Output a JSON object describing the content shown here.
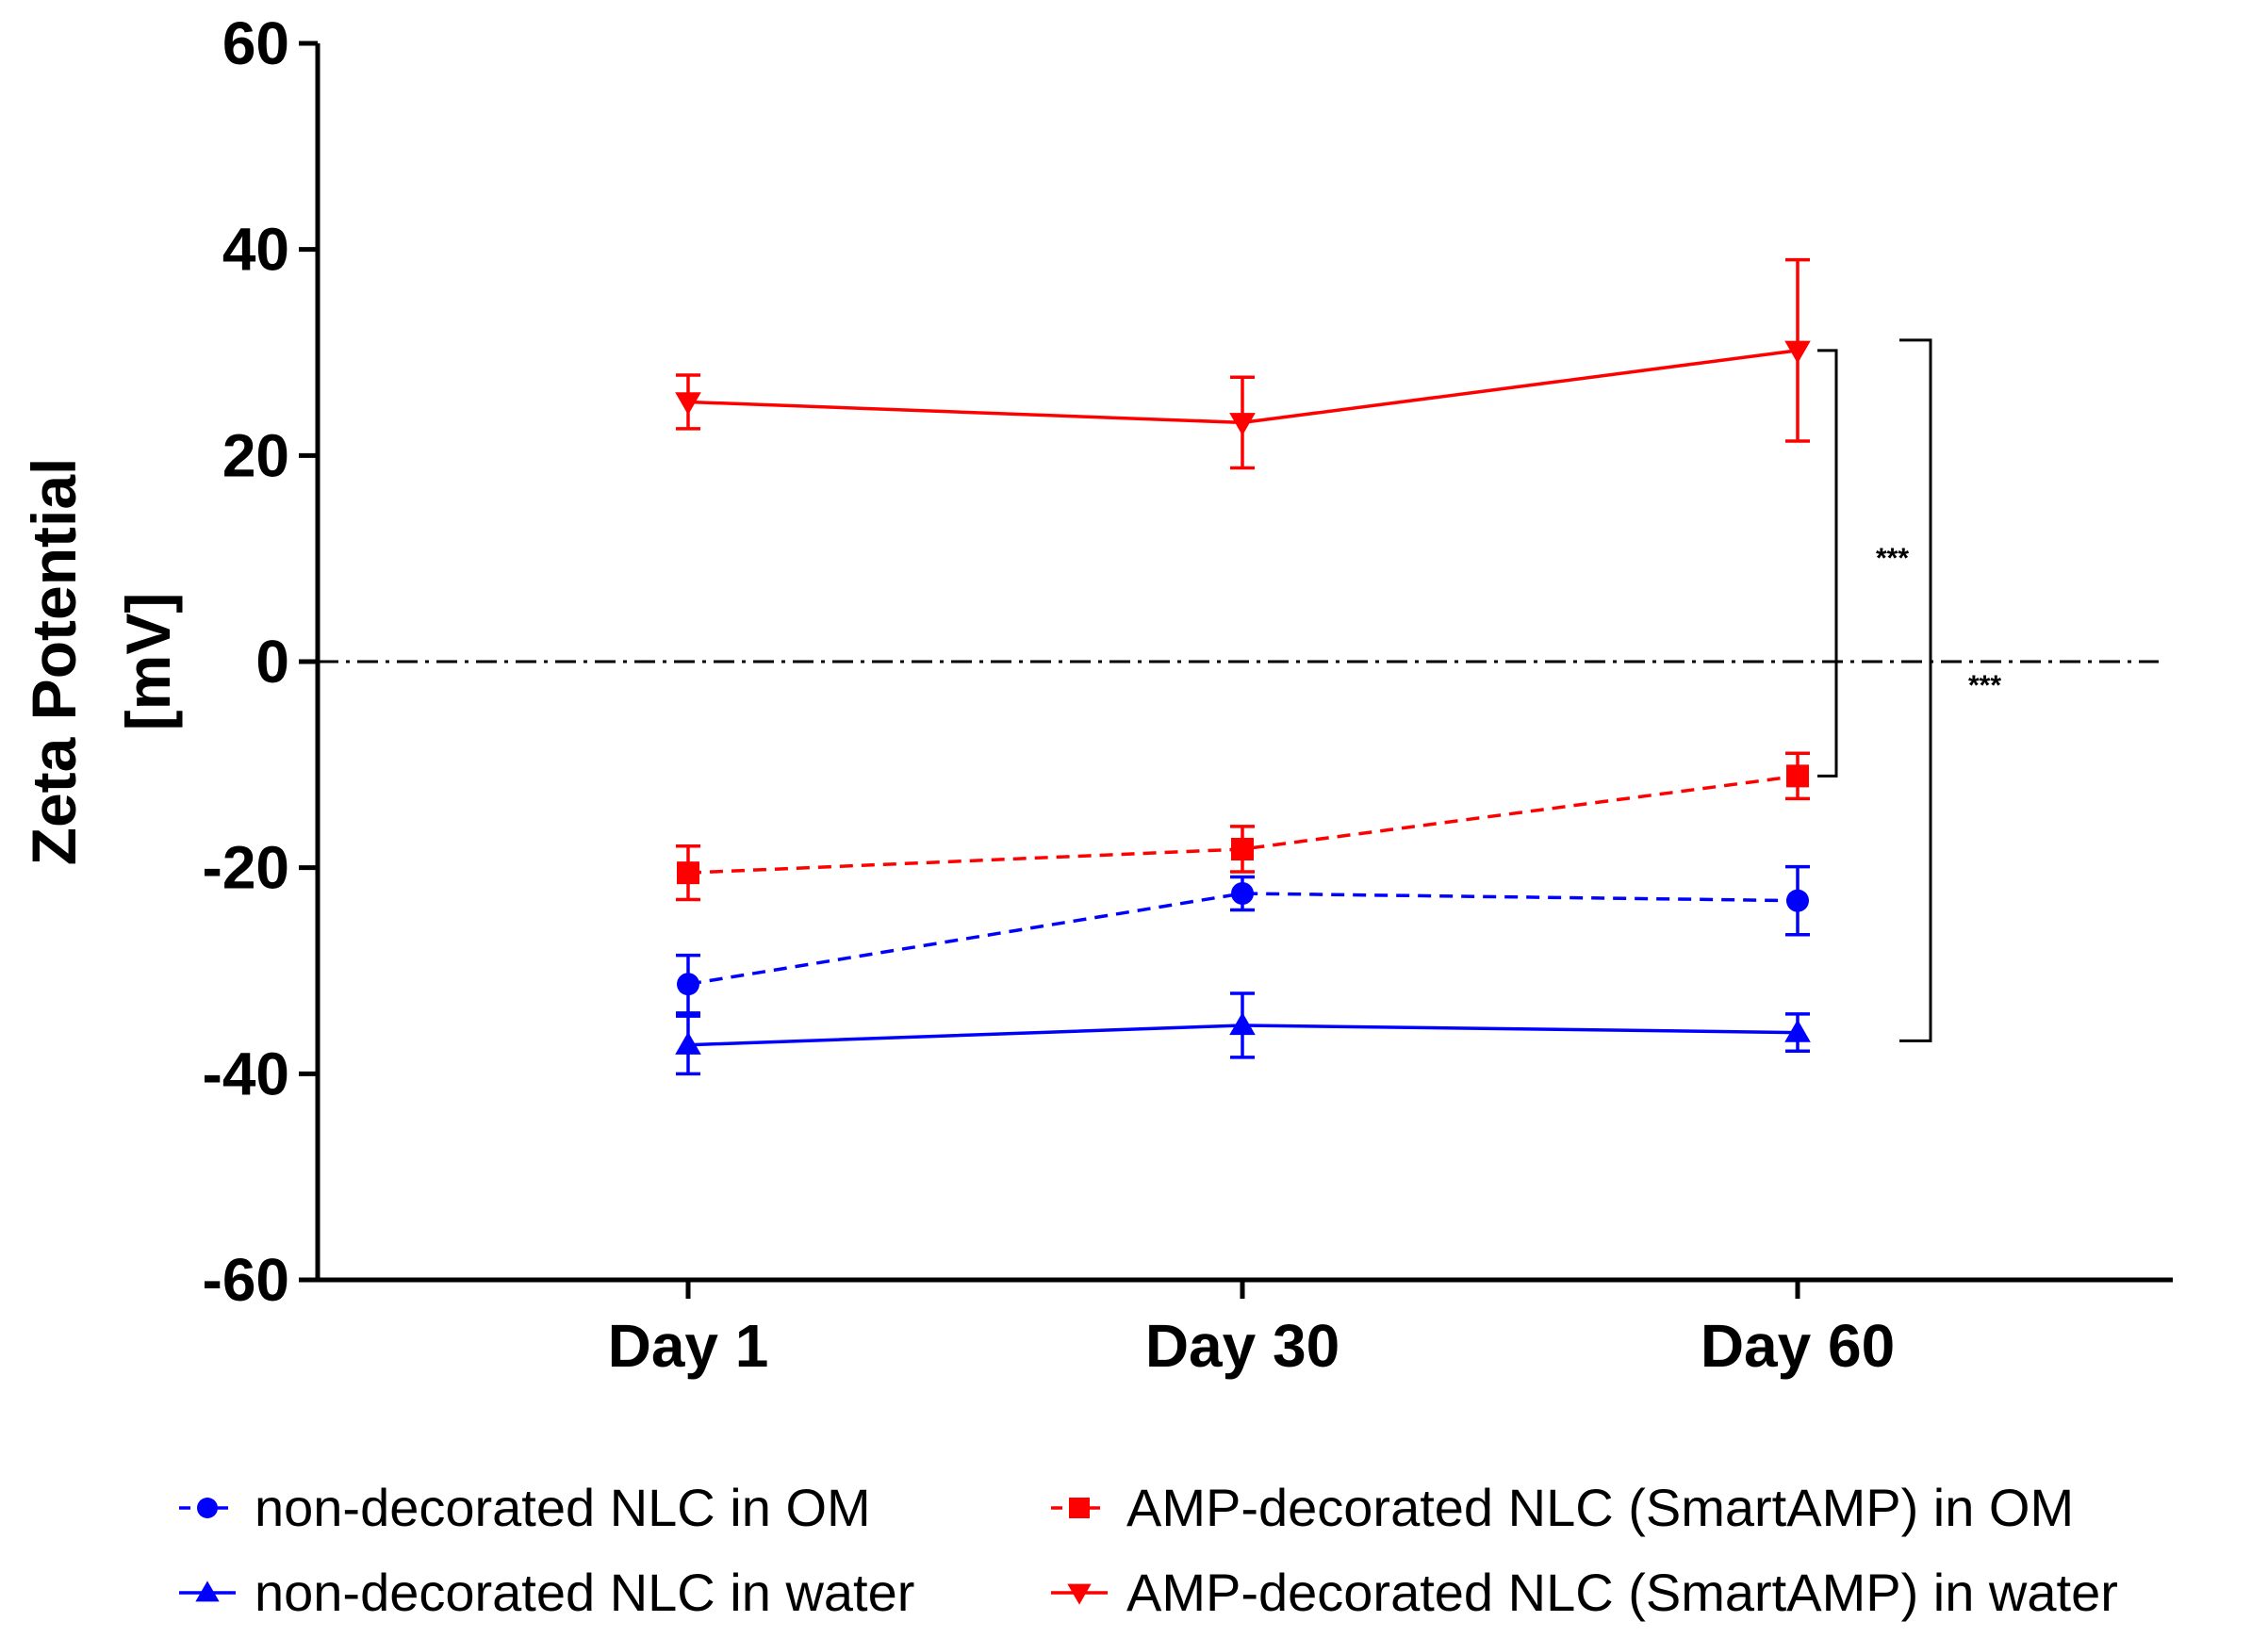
{
  "chart_data": {
    "type": "line",
    "title": "",
    "xlabel": "",
    "ylabel_lines": [
      "Zeta Potential",
      "[mV]"
    ],
    "categories": [
      "Day 1",
      "Day 30",
      "Day 60"
    ],
    "ylim": [
      -60,
      60
    ],
    "yticks": [
      60,
      40,
      20,
      0,
      -20,
      -40,
      -60
    ],
    "ytick_labels": [
      "60",
      "40",
      "20",
      "0",
      "-20",
      "-40",
      "-60"
    ],
    "reference_line": 0,
    "series": [
      {
        "name": "non-decorated NLC in OM",
        "color": "#0000ff",
        "dashed": true,
        "marker": "circle",
        "values": [
          -31.3,
          -22.5,
          -23.2
        ],
        "errors": [
          2.8,
          1.6,
          3.3
        ]
      },
      {
        "name": "non-decorated NLC in water",
        "color": "#0000ff",
        "dashed": false,
        "marker": "triangle-up",
        "values": [
          -37.2,
          -35.3,
          -36.0
        ],
        "errors": [
          2.8,
          3.1,
          1.8
        ]
      },
      {
        "name": "AMP-decorated NLC (SmartAMP) in OM",
        "color": "#ff0000",
        "dashed": true,
        "marker": "square",
        "values": [
          -20.5,
          -18.2,
          -11.1
        ],
        "errors": [
          2.6,
          2.2,
          2.2
        ]
      },
      {
        "name": "AMP-decorated NLC (SmartAMP) in water",
        "color": "#ff0000",
        "dashed": false,
        "marker": "triangle-down",
        "values": [
          25.2,
          23.2,
          30.2
        ],
        "errors": [
          2.6,
          4.4,
          8.8
        ]
      }
    ],
    "significance": [
      {
        "label": "***",
        "from": 30.2,
        "to": -11.1
      },
      {
        "label": "***",
        "from": 31.2,
        "to": -36.8
      }
    ],
    "legend_position": "bottom"
  }
}
